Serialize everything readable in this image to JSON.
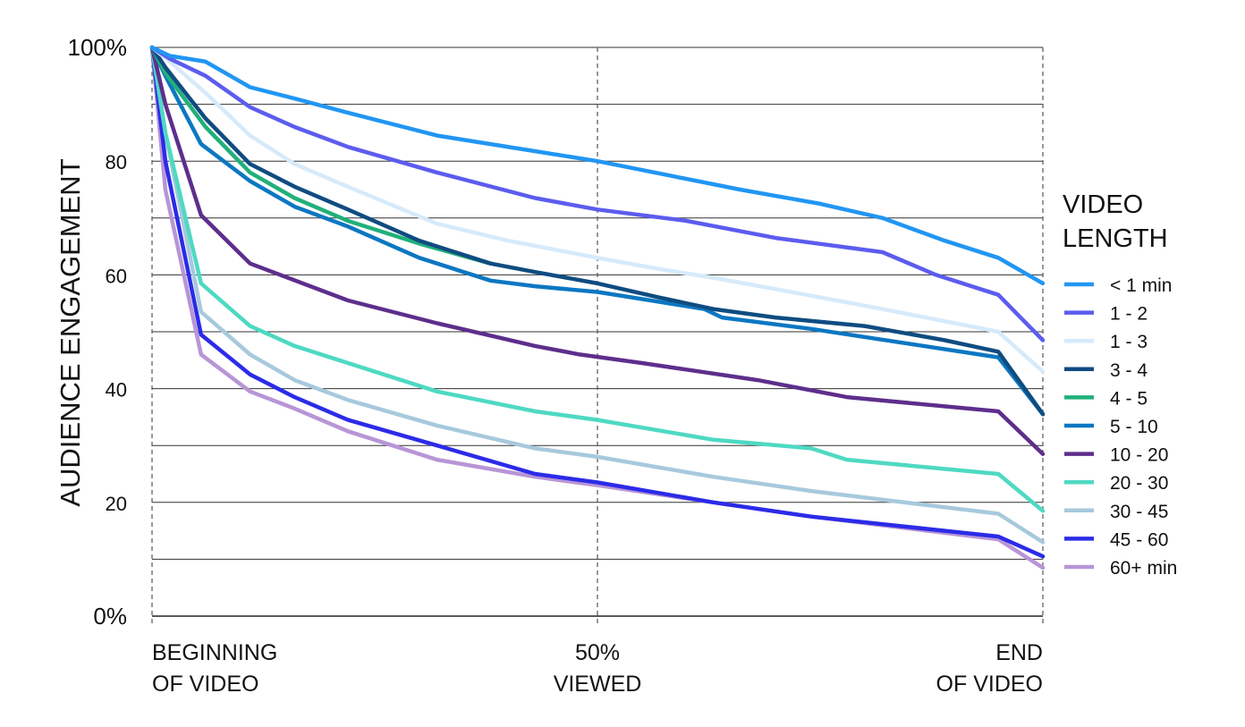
{
  "chart_data": {
    "type": "line",
    "title": "",
    "ylabel": "AUDIENCE ENGAGEMENT",
    "xlabel": "",
    "ylim": [
      0,
      100
    ],
    "xlim": [
      0,
      100
    ],
    "y_ticks": [
      {
        "value": 0,
        "label": "0%"
      },
      {
        "value": 20,
        "label": "20"
      },
      {
        "value": 40,
        "label": "40"
      },
      {
        "value": 60,
        "label": "60"
      },
      {
        "value": 80,
        "label": "80"
      },
      {
        "value": 100,
        "label": "100%"
      }
    ],
    "y_gridlines": [
      10,
      20,
      30,
      40,
      50,
      60,
      70,
      80,
      90,
      100
    ],
    "x_ticks": [
      {
        "value": 0,
        "lines": [
          "BEGINNING",
          "OF VIDEO"
        ],
        "align": "start"
      },
      {
        "value": 50,
        "lines": [
          "50%",
          "VIEWED"
        ],
        "align": "middle"
      },
      {
        "value": 100,
        "lines": [
          "END",
          "OF VIDEO"
        ],
        "align": "end"
      }
    ],
    "legend": {
      "title_lines": [
        "VIDEO",
        "LENGTH"
      ],
      "placement": "right"
    },
    "series": [
      {
        "name": "< 1 min",
        "color": "#2196F3",
        "x": [
          0,
          2,
          6,
          11,
          16,
          22,
          32,
          42,
          50,
          58,
          66,
          75,
          82,
          89,
          95,
          100
        ],
        "y": [
          100,
          98.5,
          97.5,
          93,
          91,
          88.5,
          84.5,
          82,
          80,
          77.5,
          75,
          72.5,
          70,
          66,
          63,
          58.5
        ]
      },
      {
        "name": "1 - 2",
        "color": "#5C5CEF",
        "x": [
          0,
          2,
          6,
          11,
          16,
          22,
          32,
          43,
          50,
          60,
          70,
          82,
          88,
          95,
          100
        ],
        "y": [
          100,
          98,
          95,
          89.5,
          86,
          82.5,
          78,
          73.5,
          71.5,
          69.5,
          66.5,
          64,
          60,
          56.5,
          48.5
        ]
      },
      {
        "name": "1 - 3",
        "color": "#D6EAFA",
        "x": [
          0,
          2,
          6,
          11,
          16,
          22,
          32,
          40,
          50,
          57,
          63,
          70,
          82,
          95,
          100
        ],
        "y": [
          100,
          97.5,
          92,
          84.5,
          79.5,
          75.5,
          69,
          66,
          63,
          61,
          59.5,
          57.5,
          54,
          50,
          43
        ]
      },
      {
        "name": "3 - 4",
        "color": "#0F4C81",
        "x": [
          0,
          1.5,
          6,
          11,
          16,
          22,
          30,
          38,
          43,
          50,
          57,
          63,
          70,
          80,
          89,
          95,
          100
        ],
        "y": [
          100,
          96.5,
          87.5,
          79.5,
          75.5,
          71.5,
          66,
          62,
          60.5,
          58.5,
          56,
          54,
          52.5,
          51,
          48.5,
          46.5,
          35.5
        ]
      },
      {
        "name": "4 - 5",
        "color": "#21B07A",
        "x": [
          0,
          1.5,
          6,
          11,
          16,
          22,
          30,
          38
        ],
        "y": [
          100,
          95.5,
          86,
          78,
          73.5,
          69.5,
          65.5,
          62
        ]
      },
      {
        "name": "5 - 10",
        "color": "#0C77C2",
        "x": [
          0,
          1.5,
          5.5,
          11,
          16,
          22,
          30,
          38,
          43,
          50,
          56,
          62,
          64,
          74,
          95,
          100
        ],
        "y": [
          100,
          95,
          83,
          76.5,
          72,
          68.5,
          63,
          59,
          58,
          57,
          55.5,
          54,
          52.5,
          50.5,
          45.5,
          35.5
        ]
      },
      {
        "name": "10 - 20",
        "color": "#5E2E8C",
        "x": [
          0,
          1.5,
          5.5,
          11,
          22,
          32,
          43,
          48,
          55,
          68,
          78,
          95,
          100
        ],
        "y": [
          100,
          90,
          70.5,
          62,
          55.5,
          51.5,
          47.5,
          46,
          44.5,
          41.5,
          38.5,
          36,
          28.5
        ]
      },
      {
        "name": "20 - 30",
        "color": "#4ED9C3",
        "x": [
          0,
          1.5,
          5.5,
          11,
          16,
          22,
          32,
          43,
          50,
          63,
          74,
          78,
          95,
          100
        ],
        "y": [
          100,
          85,
          58.5,
          51,
          47.5,
          44.5,
          39.5,
          36,
          34.5,
          31,
          29.5,
          27.5,
          25,
          18.5
        ]
      },
      {
        "name": "30 - 45",
        "color": "#A7C9DD",
        "x": [
          0,
          1.5,
          5.5,
          11,
          16,
          22,
          32,
          43,
          50,
          63,
          74,
          95,
          100
        ],
        "y": [
          100,
          85,
          53.5,
          46,
          41.5,
          38,
          33.5,
          29.5,
          28,
          24.5,
          22,
          18,
          13
        ]
      },
      {
        "name": "45 - 60",
        "color": "#2B2BE8",
        "x": [
          0,
          1.5,
          5.5,
          11,
          16,
          22,
          32,
          43,
          50,
          63,
          74,
          95,
          100
        ],
        "y": [
          100,
          80,
          49.5,
          42.5,
          38.5,
          34.5,
          30,
          25,
          23.5,
          20,
          17.5,
          14,
          10.5
        ]
      },
      {
        "name": "60+ min",
        "color": "#B895D6",
        "x": [
          0,
          1.5,
          5.5,
          11,
          16,
          22,
          32,
          43,
          50,
          63,
          74,
          95,
          100
        ],
        "y": [
          100,
          75,
          46,
          39.5,
          36.5,
          32.5,
          27.5,
          24.5,
          23,
          20,
          17.5,
          13.5,
          8.5
        ]
      }
    ]
  }
}
